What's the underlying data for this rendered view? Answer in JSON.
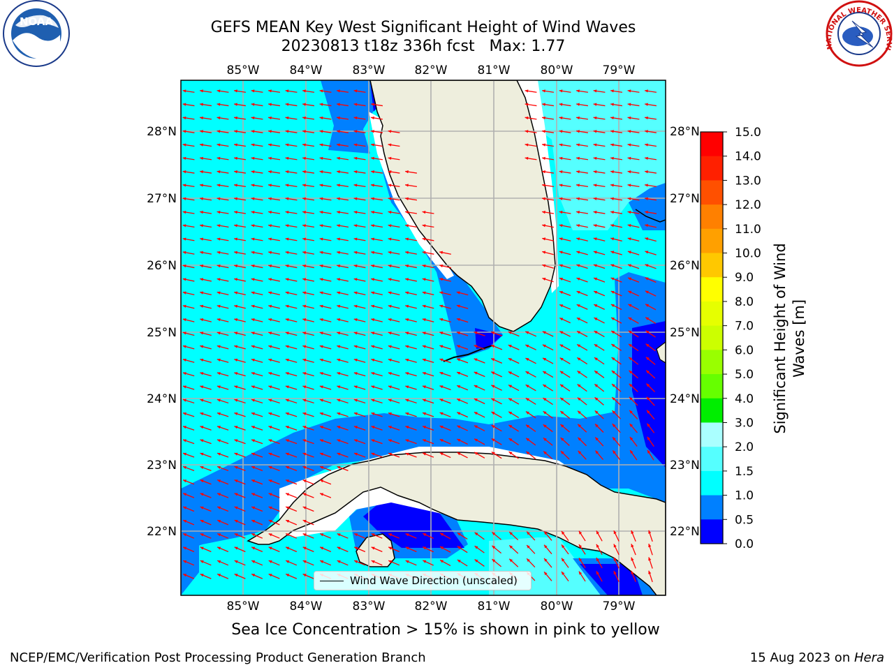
{
  "title": {
    "line1": "GEFS MEAN Key West Significant Height of Wind Waves",
    "line2": "20230813 t18z 336h fcst   Max: 1.77"
  },
  "map": {
    "lon_ticks": [
      "85°W",
      "84°W",
      "83°W",
      "82°W",
      "81°W",
      "80°W",
      "79°W"
    ],
    "lat_ticks": [
      "28°N",
      "27°N",
      "26°N",
      "25°N",
      "24°N",
      "23°N",
      "22°N"
    ],
    "colors": {
      "ocean_light": "#00ffff",
      "ocean_mid": "#0080ff",
      "ocean_deep": "#0000ff",
      "ocean_pale": "#55ffff",
      "land": "#eeeedd",
      "arrow": "#ff0000",
      "grid": "#b0b0b0"
    }
  },
  "legend": {
    "label": "Wind Wave Direction (unscaled)"
  },
  "colorbar": {
    "title": "Significant Height of Wind Waves [m]",
    "title_line1": "Significant Height of Wind",
    "title_line2": "Waves [m]",
    "ticks": [
      "15.0",
      "14.0",
      "13.0",
      "12.0",
      "11.0",
      "10.0",
      "9.0",
      "8.0",
      "7.0",
      "6.0",
      "5.0",
      "4.0",
      "3.0",
      "2.0",
      "1.5",
      "1.0",
      "0.5",
      "0.0"
    ],
    "colors_top_to_bottom": [
      "#ff0000",
      "#ff2000",
      "#ff5000",
      "#ff8000",
      "#ffa000",
      "#ffc800",
      "#ffff00",
      "#e6ff00",
      "#ccff00",
      "#99ff00",
      "#66ff00",
      "#00ee00",
      "#00cc44",
      "#55ff99",
      "#aaffff",
      "#55ffff",
      "#00ffff",
      "#0080ff",
      "#0000ff"
    ]
  },
  "notes": {
    "sea_ice": "Sea Ice Concentration > 15% is shown in pink to yellow"
  },
  "footer": {
    "left": "NCEP/EMC/Verification Post Processing Product Generation Branch",
    "date": "15 Aug 2023 on ",
    "host": "Hera"
  },
  "logos": {
    "noaa_text": "NOAA",
    "nws_text": "NATIONAL WEATHER SERVICE"
  }
}
